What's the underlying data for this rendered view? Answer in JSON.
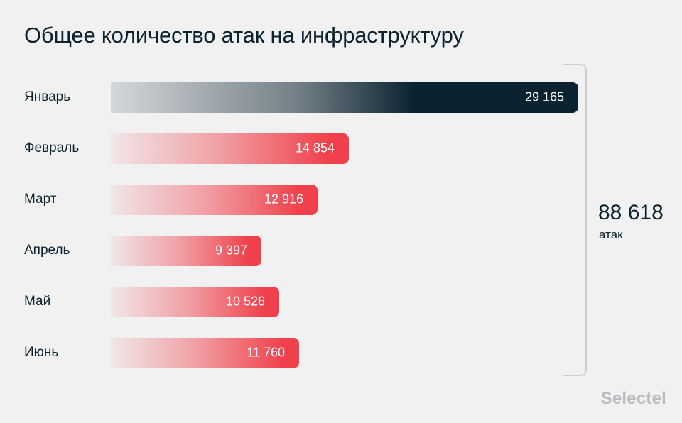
{
  "title": "Общее количество атак на инфраструктуру",
  "chart_data": {
    "type": "bar",
    "orientation": "horizontal",
    "title": "Общее количество атак на инфраструктуру",
    "categories": [
      "Январь",
      "Февраль",
      "Март",
      "Апрель",
      "Май",
      "Июнь"
    ],
    "values": [
      29165,
      14854,
      12916,
      9397,
      10526,
      11760
    ],
    "value_labels": [
      "29 165",
      "14 854",
      "12 916",
      "9 397",
      "10 526",
      "11 760"
    ],
    "highlight_index": 0,
    "xlabel": "",
    "ylabel": "",
    "grid": false,
    "legend": "none"
  },
  "total": {
    "value": "88 618",
    "unit": "атак"
  },
  "colors": {
    "dark": "#0b2230",
    "red": "#ef404b",
    "background": "#f1f1f1",
    "brand": "#b7bcc0"
  },
  "brand": "Selectel"
}
